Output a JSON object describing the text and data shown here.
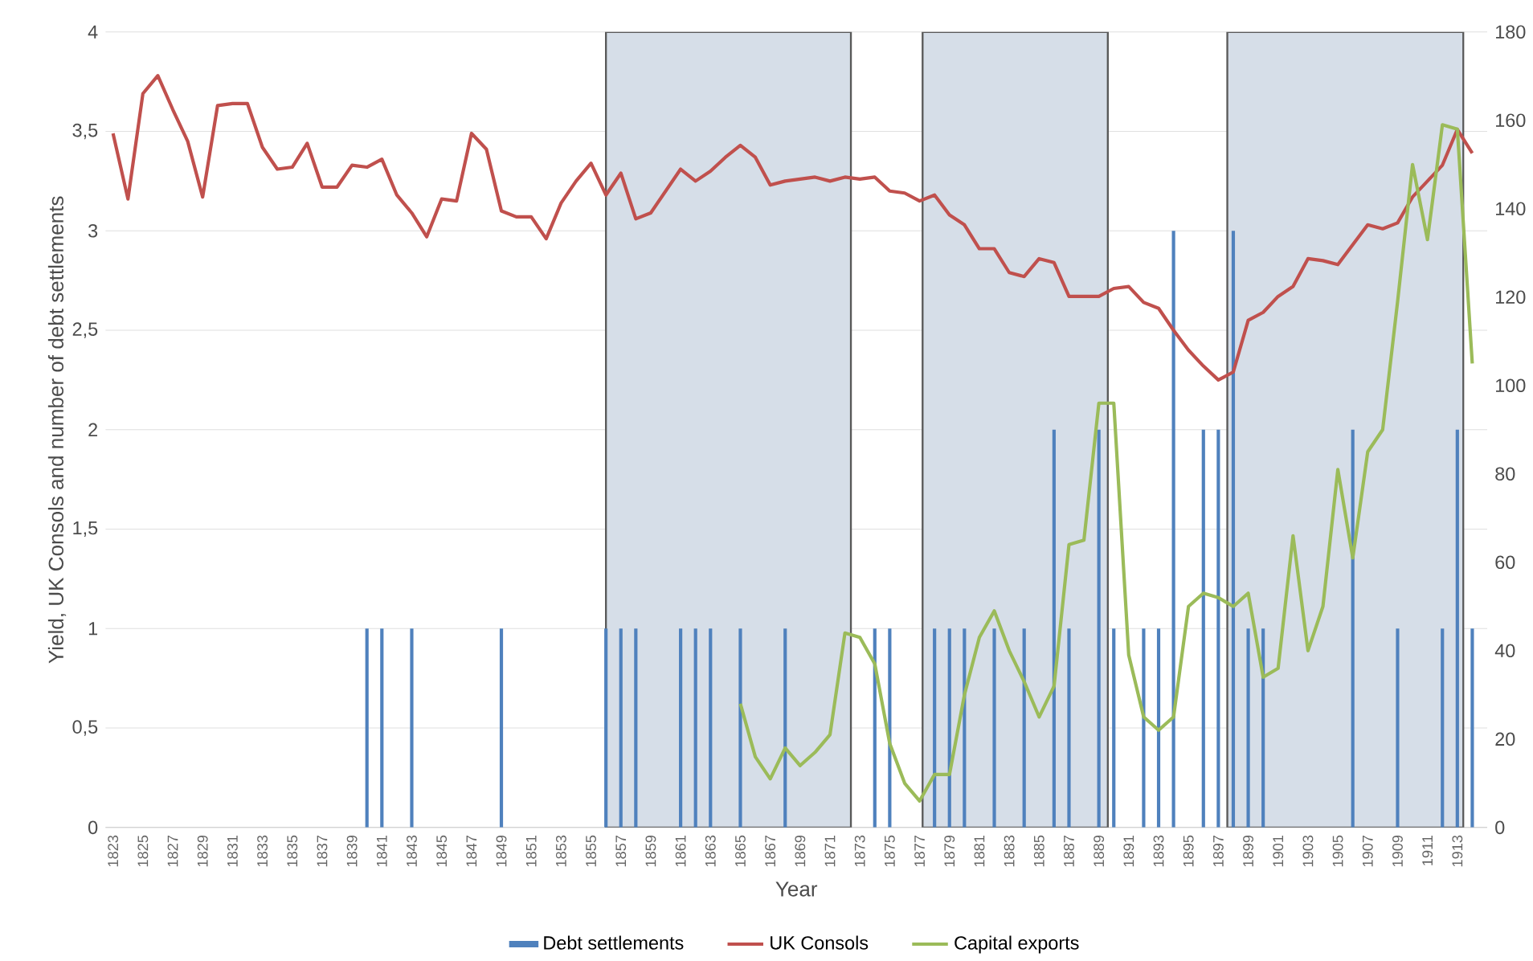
{
  "chart_data": {
    "type": "line",
    "xlabel": "Year",
    "ylabel": "Yield, UK Consols and number of debt settlements",
    "xlim": [
      1822.5,
      1915
    ],
    "xticks": [
      1823,
      1825,
      1827,
      1829,
      1831,
      1833,
      1835,
      1837,
      1839,
      1841,
      1843,
      1845,
      1847,
      1849,
      1851,
      1853,
      1855,
      1857,
      1859,
      1861,
      1863,
      1865,
      1867,
      1869,
      1871,
      1873,
      1875,
      1877,
      1879,
      1881,
      1883,
      1885,
      1887,
      1889,
      1891,
      1893,
      1895,
      1897,
      1899,
      1901,
      1903,
      1905,
      1907,
      1909,
      1911,
      1913
    ],
    "ylim": [
      0,
      4
    ],
    "yticks": [
      0,
      {
        "value": 0.5,
        "label": "0,5"
      },
      1,
      {
        "value": 1.5,
        "label": "1,5"
      },
      2,
      {
        "value": 2.5,
        "label": "2,5"
      },
      3,
      {
        "value": 3.5,
        "label": "3,5"
      },
      4
    ],
    "y2lim": [
      0,
      180
    ],
    "y2ticks": [
      0,
      20,
      40,
      60,
      80,
      100,
      120,
      140,
      160,
      180
    ],
    "grid": "y",
    "legend": "bottom",
    "bands": [
      {
        "axis": "x",
        "from": 1856,
        "to": 1872.4,
        "color": "#d6dee8"
      },
      {
        "axis": "x",
        "from": 1877.2,
        "to": 1889.6,
        "color": "#d6dee8"
      },
      {
        "axis": "x",
        "from": 1897.6,
        "to": 1913.4,
        "color": "#d6dee8"
      }
    ],
    "series": [
      {
        "name": "Debt settlements",
        "type": "bar",
        "color": "#4f81bd",
        "x": [
          1840,
          1841,
          1843,
          1849,
          1856,
          1857,
          1858,
          1861,
          1862,
          1863,
          1865,
          1868,
          1874,
          1875,
          1878,
          1879,
          1880,
          1882,
          1884,
          1886,
          1887,
          1889,
          1890,
          1892,
          1893,
          1894,
          1896,
          1897,
          1898,
          1899,
          1900,
          1906,
          1909,
          1912,
          1913,
          1914
        ],
        "values": [
          1,
          1,
          1,
          1,
          1,
          1,
          1,
          1,
          1,
          1,
          1,
          1,
          1,
          1,
          1,
          1,
          1,
          1,
          1,
          2,
          1,
          2,
          1,
          1,
          1,
          3,
          2,
          2,
          3,
          1,
          1,
          2,
          1,
          1,
          2,
          1
        ]
      },
      {
        "name": "UK Consols",
        "color": "#c0504d",
        "x": [
          1823,
          1824,
          1825,
          1826,
          1827,
          1828,
          1829,
          1830,
          1831,
          1832,
          1833,
          1834,
          1835,
          1836,
          1837,
          1838,
          1839,
          1840,
          1841,
          1842,
          1843,
          1844,
          1845,
          1846,
          1847,
          1848,
          1849,
          1850,
          1851,
          1852,
          1853,
          1854,
          1855,
          1856,
          1857,
          1858,
          1859,
          1860,
          1861,
          1862,
          1863,
          1864,
          1865,
          1866,
          1867,
          1868,
          1869,
          1870,
          1871,
          1872,
          1873,
          1874,
          1875,
          1876,
          1877,
          1878,
          1879,
          1880,
          1881,
          1882,
          1883,
          1884,
          1885,
          1886,
          1887,
          1888,
          1889,
          1890,
          1891,
          1892,
          1893,
          1894,
          1895,
          1896,
          1897,
          1898,
          1899,
          1900,
          1901,
          1902,
          1903,
          1904,
          1905,
          1906,
          1907,
          1908,
          1909,
          1910,
          1911,
          1912,
          1913,
          1914
        ],
        "values": [
          3.49,
          3.16,
          3.69,
          3.78,
          3.61,
          3.45,
          3.17,
          3.63,
          3.64,
          3.64,
          3.42,
          3.31,
          3.32,
          3.44,
          3.22,
          3.22,
          3.33,
          3.32,
          3.36,
          3.18,
          3.09,
          2.97,
          3.16,
          3.15,
          3.49,
          3.41,
          3.1,
          3.07,
          3.07,
          2.96,
          3.14,
          3.25,
          3.34,
          3.18,
          3.29,
          3.06,
          3.09,
          3.2,
          3.31,
          3.25,
          3.3,
          3.37,
          3.43,
          3.37,
          3.23,
          3.25,
          3.26,
          3.27,
          3.25,
          3.27,
          3.26,
          3.27,
          3.2,
          3.19,
          3.15,
          3.18,
          3.08,
          3.03,
          2.91,
          2.91,
          2.79,
          2.77,
          2.86,
          2.84,
          2.67,
          2.67,
          2.67,
          2.71,
          2.72,
          2.64,
          2.61,
          2.5,
          2.4,
          2.32,
          2.25,
          2.29,
          2.55,
          2.59,
          2.67,
          2.72,
          2.86,
          2.85,
          2.83,
          2.93,
          3.03,
          3.01,
          3.04,
          3.17,
          3.25,
          3.33,
          3.51,
          3.39
        ]
      },
      {
        "name": "Capital exports",
        "axis": "y2",
        "color": "#9bbb59",
        "x": [
          1865,
          1866,
          1867,
          1868,
          1869,
          1870,
          1871,
          1872,
          1873,
          1874,
          1875,
          1876,
          1877,
          1878,
          1879,
          1880,
          1881,
          1882,
          1883,
          1884,
          1885,
          1886,
          1887,
          1888,
          1889,
          1890,
          1891,
          1892,
          1893,
          1894,
          1895,
          1896,
          1897,
          1898,
          1899,
          1900,
          1901,
          1902,
          1903,
          1904,
          1905,
          1906,
          1907,
          1908,
          1909,
          1910,
          1911,
          1912,
          1913,
          1914
        ],
        "values": [
          28,
          16,
          11,
          18,
          14,
          17,
          21,
          44,
          43,
          37,
          19,
          10,
          6,
          12,
          12,
          30,
          43,
          49,
          40,
          33,
          25,
          32,
          64,
          65,
          96,
          96,
          39,
          25,
          22,
          25,
          50,
          53,
          52,
          50,
          53,
          34,
          36,
          66,
          40,
          50,
          81,
          61,
          85,
          90,
          119,
          150,
          133,
          159,
          158,
          105
        ]
      }
    ]
  }
}
